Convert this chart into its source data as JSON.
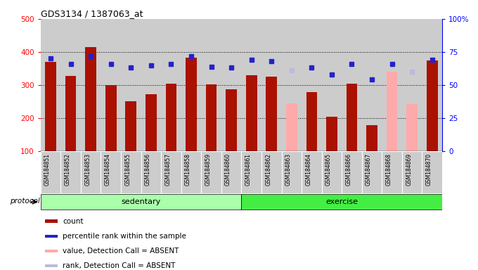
{
  "title": "GDS3134 / 1387063_at",
  "samples": [
    "GSM184851",
    "GSM184852",
    "GSM184853",
    "GSM184854",
    "GSM184855",
    "GSM184856",
    "GSM184857",
    "GSM184858",
    "GSM184859",
    "GSM184860",
    "GSM184861",
    "GSM184862",
    "GSM184863",
    "GSM184864",
    "GSM184865",
    "GSM184866",
    "GSM184867",
    "GSM184868",
    "GSM184869",
    "GSM184870"
  ],
  "count_values": [
    370,
    328,
    415,
    299,
    252,
    273,
    304,
    382,
    302,
    287,
    330,
    325,
    245,
    278,
    205,
    304,
    178,
    340,
    243,
    374
  ],
  "count_absent": [
    false,
    false,
    false,
    false,
    false,
    false,
    false,
    false,
    false,
    false,
    false,
    false,
    true,
    false,
    false,
    false,
    false,
    true,
    true,
    false
  ],
  "rank_pct": [
    70,
    66,
    72,
    66,
    63,
    65,
    66,
    72,
    64,
    63,
    69,
    68,
    61,
    63,
    58,
    66,
    54,
    66,
    60,
    69
  ],
  "rank_absent": [
    false,
    false,
    false,
    false,
    false,
    false,
    false,
    false,
    false,
    false,
    false,
    false,
    true,
    false,
    false,
    false,
    false,
    false,
    true,
    false
  ],
  "ylim_left": [
    100,
    500
  ],
  "ylim_right": [
    0,
    100
  ],
  "yticks_left": [
    100,
    200,
    300,
    400,
    500
  ],
  "yticks_right": [
    0,
    25,
    50,
    75,
    100
  ],
  "ytick_labels_right": [
    "0",
    "25",
    "50",
    "75",
    "100%"
  ],
  "protocol_groups": [
    {
      "label": "sedentary",
      "start": 0,
      "end": 9
    },
    {
      "label": "exercise",
      "start": 10,
      "end": 19
    }
  ],
  "protocol_label": "protocol",
  "bar_color_present": "#AA1100",
  "bar_color_absent": "#FFAAAA",
  "rank_color_present": "#2222CC",
  "rank_color_absent": "#BBBBDD",
  "group_color_sedentary": "#AAFFAA",
  "group_color_exercise": "#44EE44",
  "col_bg_color": "#CCCCCC",
  "bar_width": 0.55,
  "legend_items": [
    {
      "label": "count",
      "color": "#AA1100"
    },
    {
      "label": "percentile rank within the sample",
      "color": "#2222CC"
    },
    {
      "label": "value, Detection Call = ABSENT",
      "color": "#FFAAAA"
    },
    {
      "label": "rank, Detection Call = ABSENT",
      "color": "#BBBBDD"
    }
  ]
}
